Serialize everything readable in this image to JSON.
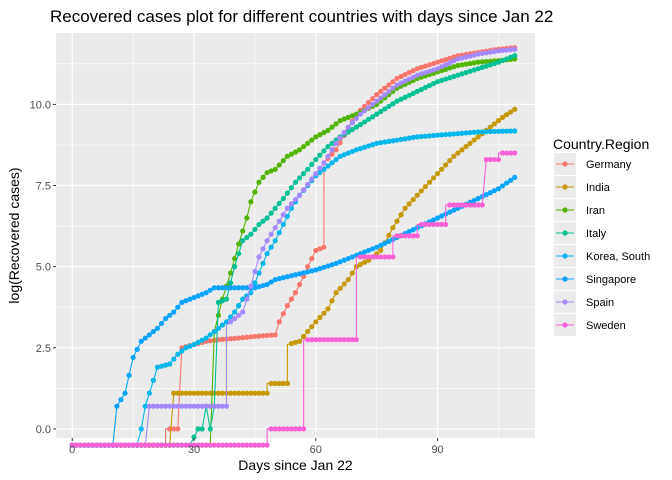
{
  "chart_data": {
    "type": "line",
    "title": "Recovered cases plot for different countries with days since Jan 22",
    "xlabel": "Days since Jan 22",
    "ylabel": "log(Recovered cases)",
    "xlim": [
      -4,
      114
    ],
    "ylim": [
      -0.28,
      12.2
    ],
    "x_ticks": [
      0,
      30,
      60,
      90
    ],
    "y_ticks": [
      0.0,
      2.5,
      5.0,
      7.5,
      10.0
    ],
    "y_tick_labels": [
      "0.0",
      "2.5",
      "5.0",
      "7.5",
      "10.0"
    ],
    "grid": true,
    "background": "#ebebeb",
    "legend": {
      "title": "Country.Region",
      "position": "right"
    },
    "series": [
      {
        "name": "Germany",
        "color": "#F8766D",
        "points": [
          [
            0,
            -0.5
          ],
          [
            23,
            -0.5
          ],
          [
            23,
            0
          ],
          [
            26,
            0
          ],
          [
            27,
            2.5
          ],
          [
            30,
            2.6
          ],
          [
            33,
            2.7
          ],
          [
            36,
            2.75
          ],
          [
            41,
            2.8
          ],
          [
            45,
            2.85
          ],
          [
            50,
            2.9
          ],
          [
            51,
            3.3
          ],
          [
            53,
            3.8
          ],
          [
            55,
            4.2
          ],
          [
            57,
            4.7
          ],
          [
            58,
            5.0
          ],
          [
            60,
            5.5
          ],
          [
            62,
            5.6
          ],
          [
            62,
            8.2
          ],
          [
            65,
            8.6
          ],
          [
            70,
            9.7
          ],
          [
            75,
            10.3
          ],
          [
            80,
            10.8
          ],
          [
            85,
            11.1
          ],
          [
            90,
            11.3
          ],
          [
            95,
            11.5
          ],
          [
            100,
            11.6
          ],
          [
            105,
            11.7
          ],
          [
            109,
            11.75
          ]
        ]
      },
      {
        "name": "India",
        "color": "#C49A00",
        "points": [
          [
            0,
            -0.5
          ],
          [
            24,
            -0.5
          ],
          [
            25,
            1.1
          ],
          [
            30,
            1.1
          ],
          [
            40,
            1.1
          ],
          [
            48,
            1.1
          ],
          [
            48,
            1.4
          ],
          [
            53,
            1.4
          ],
          [
            53,
            2.6
          ],
          [
            56,
            2.7
          ],
          [
            58,
            3.0
          ],
          [
            60,
            3.3
          ],
          [
            63,
            3.7
          ],
          [
            65,
            4.2
          ],
          [
            68,
            4.6
          ],
          [
            70,
            5.0
          ],
          [
            73,
            5.2
          ],
          [
            76,
            5.5
          ],
          [
            79,
            6.2
          ],
          [
            82,
            6.8
          ],
          [
            85,
            7.2
          ],
          [
            88,
            7.6
          ],
          [
            91,
            8.0
          ],
          [
            94,
            8.4
          ],
          [
            97,
            8.7
          ],
          [
            100,
            9.0
          ],
          [
            103,
            9.3
          ],
          [
            106,
            9.6
          ],
          [
            109,
            9.85
          ]
        ]
      },
      {
        "name": "Iran",
        "color": "#53B400",
        "points": [
          [
            0,
            -0.5
          ],
          [
            34,
            -0.5
          ],
          [
            35,
            3.0
          ],
          [
            37,
            4.0
          ],
          [
            39,
            4.8
          ],
          [
            41,
            5.7
          ],
          [
            43,
            6.5
          ],
          [
            44,
            7.0
          ],
          [
            46,
            7.6
          ],
          [
            48,
            7.9
          ],
          [
            50,
            8.0
          ],
          [
            53,
            8.4
          ],
          [
            56,
            8.6
          ],
          [
            60,
            9.0
          ],
          [
            63,
            9.2
          ],
          [
            66,
            9.5
          ],
          [
            70,
            9.7
          ],
          [
            75,
            10.0
          ],
          [
            80,
            10.5
          ],
          [
            85,
            10.8
          ],
          [
            90,
            11.0
          ],
          [
            95,
            11.2
          ],
          [
            100,
            11.3
          ],
          [
            105,
            11.35
          ],
          [
            109,
            11.4
          ]
        ]
      },
      {
        "name": "Italy",
        "color": "#00C094",
        "points": [
          [
            0,
            -0.5
          ],
          [
            29,
            -0.5
          ],
          [
            31,
            0
          ],
          [
            32,
            0
          ],
          [
            33,
            0.7
          ],
          [
            34,
            0
          ],
          [
            35,
            0.7
          ],
          [
            36,
            3.9
          ],
          [
            38,
            4.0
          ],
          [
            40,
            5.0
          ],
          [
            42,
            5.8
          ],
          [
            44,
            6.0
          ],
          [
            46,
            6.3
          ],
          [
            48,
            6.5
          ],
          [
            50,
            6.8
          ],
          [
            52,
            7.1
          ],
          [
            55,
            7.6
          ],
          [
            58,
            8.0
          ],
          [
            60,
            8.3
          ],
          [
            63,
            8.7
          ],
          [
            66,
            9.0
          ],
          [
            70,
            9.3
          ],
          [
            75,
            9.7
          ],
          [
            80,
            10.1
          ],
          [
            85,
            10.4
          ],
          [
            90,
            10.7
          ],
          [
            95,
            10.9
          ],
          [
            100,
            11.1
          ],
          [
            105,
            11.3
          ],
          [
            109,
            11.5
          ]
        ]
      },
      {
        "name": "Korea, South",
        "color": "#00B6EB",
        "points": [
          [
            0,
            -0.5
          ],
          [
            16,
            -0.5
          ],
          [
            17,
            0
          ],
          [
            18,
            0.7
          ],
          [
            19,
            1.1
          ],
          [
            21,
            1.9
          ],
          [
            24,
            2.0
          ],
          [
            26,
            2.3
          ],
          [
            28,
            2.5
          ],
          [
            30,
            2.6
          ],
          [
            33,
            2.8
          ],
          [
            35,
            3.0
          ],
          [
            38,
            3.3
          ],
          [
            40,
            3.6
          ],
          [
            42,
            4.0
          ],
          [
            44,
            4.2
          ],
          [
            46,
            4.8
          ],
          [
            48,
            5.4
          ],
          [
            50,
            5.8
          ],
          [
            52,
            6.3
          ],
          [
            54,
            6.8
          ],
          [
            56,
            7.2
          ],
          [
            58,
            7.5
          ],
          [
            60,
            7.8
          ],
          [
            63,
            8.1
          ],
          [
            66,
            8.4
          ],
          [
            70,
            8.6
          ],
          [
            75,
            8.8
          ],
          [
            80,
            8.9
          ],
          [
            85,
            9.0
          ],
          [
            90,
            9.05
          ],
          [
            95,
            9.1
          ],
          [
            100,
            9.15
          ],
          [
            105,
            9.17
          ],
          [
            109,
            9.18
          ]
        ]
      },
      {
        "name": "Singapore",
        "color": "#06A4FF",
        "points": [
          [
            0,
            -0.5
          ],
          [
            10,
            -0.5
          ],
          [
            11,
            0.7
          ],
          [
            13,
            1.1
          ],
          [
            15,
            2.2
          ],
          [
            17,
            2.7
          ],
          [
            19,
            2.9
          ],
          [
            21,
            3.1
          ],
          [
            23,
            3.4
          ],
          [
            25,
            3.6
          ],
          [
            27,
            3.9
          ],
          [
            29,
            4.0
          ],
          [
            31,
            4.1
          ],
          [
            33,
            4.2
          ],
          [
            35,
            4.35
          ],
          [
            40,
            4.35
          ],
          [
            45,
            4.35
          ],
          [
            48,
            4.45
          ],
          [
            50,
            4.6
          ],
          [
            55,
            4.75
          ],
          [
            60,
            4.9
          ],
          [
            65,
            5.1
          ],
          [
            70,
            5.35
          ],
          [
            75,
            5.6
          ],
          [
            80,
            5.9
          ],
          [
            85,
            6.2
          ],
          [
            90,
            6.5
          ],
          [
            95,
            6.8
          ],
          [
            100,
            7.1
          ],
          [
            105,
            7.4
          ],
          [
            109,
            7.75
          ]
        ]
      },
      {
        "name": "Spain",
        "color": "#A58AFF",
        "points": [
          [
            0,
            -0.5
          ],
          [
            18,
            -0.5
          ],
          [
            19,
            0.7
          ],
          [
            30,
            0.7
          ],
          [
            38,
            0.7
          ],
          [
            38,
            3.2
          ],
          [
            42,
            3.6
          ],
          [
            44,
            4.4
          ],
          [
            46,
            5.3
          ],
          [
            48,
            5.8
          ],
          [
            50,
            6.2
          ],
          [
            53,
            6.8
          ],
          [
            56,
            7.2
          ],
          [
            59,
            7.7
          ],
          [
            62,
            8.2
          ],
          [
            65,
            8.8
          ],
          [
            68,
            9.3
          ],
          [
            71,
            9.7
          ],
          [
            75,
            10.1
          ],
          [
            80,
            10.6
          ],
          [
            85,
            10.9
          ],
          [
            90,
            11.1
          ],
          [
            95,
            11.4
          ],
          [
            100,
            11.55
          ],
          [
            105,
            11.65
          ],
          [
            109,
            11.7
          ]
        ]
      },
      {
        "name": "Sweden",
        "color": "#FB61D7",
        "points": [
          [
            0,
            -0.5
          ],
          [
            48,
            -0.5
          ],
          [
            48,
            0
          ],
          [
            57,
            0
          ],
          [
            57,
            2.75
          ],
          [
            70,
            2.75
          ],
          [
            70,
            5.3
          ],
          [
            79,
            5.3
          ],
          [
            79,
            5.95
          ],
          [
            85,
            5.95
          ],
          [
            85,
            6.3
          ],
          [
            92,
            6.3
          ],
          [
            92,
            6.9
          ],
          [
            101,
            6.9
          ],
          [
            102,
            8.3
          ],
          [
            105,
            8.3
          ],
          [
            105,
            8.5
          ],
          [
            109,
            8.5
          ]
        ]
      }
    ]
  }
}
